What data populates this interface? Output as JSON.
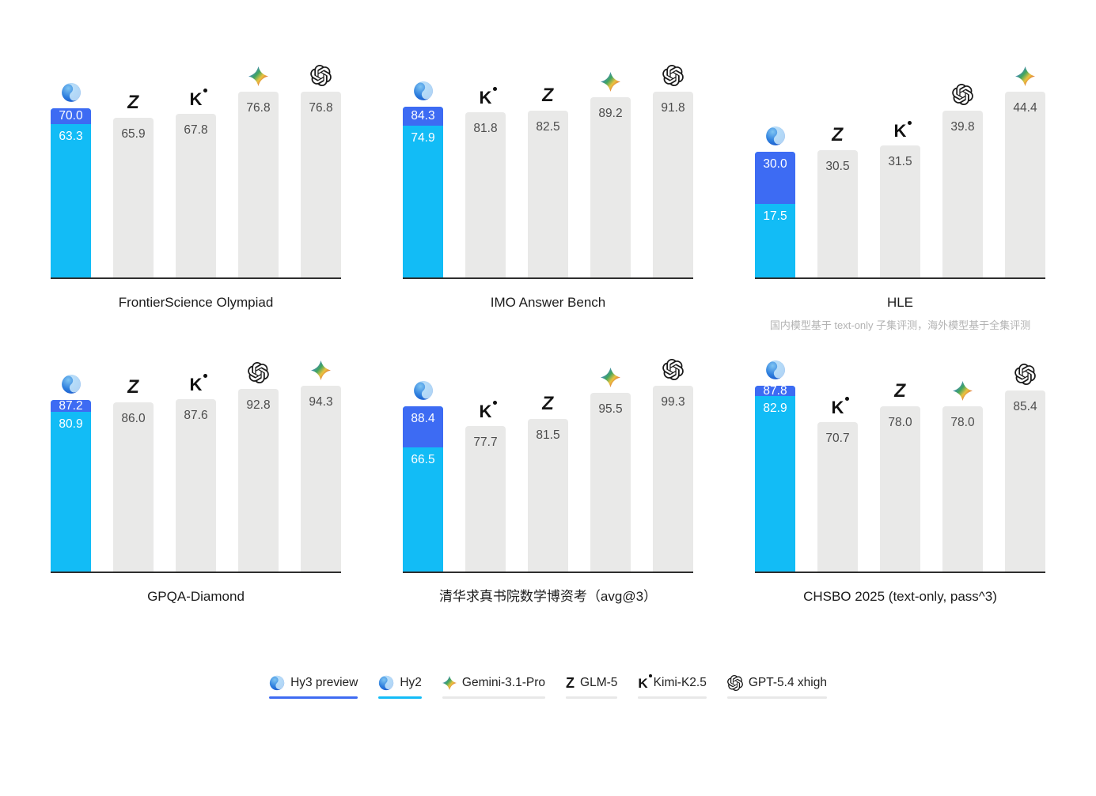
{
  "colors": {
    "hy3_preview_blue": "#3D6BF3",
    "hy2_cyan": "#12BCF6",
    "bar_gray": "#E9E9E8",
    "axis_line": "#2E2E2E",
    "value_text_gray": "#4C4C4C",
    "value_text_on_blue": "#FFFFFF",
    "title_text": "#1C1C1C",
    "footnote_text": "#B3B3B3",
    "legend_underline_hy3": "#3E6BF2",
    "legend_underline_hy2": "#13BCF7",
    "legend_underline_gray": "#E8E8E8"
  },
  "chart_data": [
    {
      "type": "bar",
      "title": "FrontierScience Olympiad",
      "bars": [
        {
          "model": "Hy3 preview + Hy2",
          "icon": "hy",
          "stacked": true,
          "hy3_preview": "70.0",
          "hy2": "63.3"
        },
        {
          "model": "GLM-5",
          "icon": "glm",
          "value": "65.9"
        },
        {
          "model": "Kimi-K2.5",
          "icon": "kimi",
          "value": "67.8"
        },
        {
          "model": "Gemini-3.1-Pro",
          "icon": "gemini",
          "value": "76.8"
        },
        {
          "model": "GPT-5.4 xhigh",
          "icon": "gpt",
          "value": "76.8"
        }
      ]
    },
    {
      "type": "bar",
      "title": "IMO Answer Bench",
      "bars": [
        {
          "model": "Hy3 preview + Hy2",
          "icon": "hy",
          "stacked": true,
          "hy3_preview": "84.3",
          "hy2": "74.9"
        },
        {
          "model": "Kimi-K2.5",
          "icon": "kimi",
          "value": "81.8"
        },
        {
          "model": "GLM-5",
          "icon": "glm",
          "value": "82.5"
        },
        {
          "model": "Gemini-3.1-Pro",
          "icon": "gemini",
          "value": "89.2"
        },
        {
          "model": "GPT-5.4 xhigh",
          "icon": "gpt",
          "value": "91.8"
        }
      ]
    },
    {
      "type": "bar",
      "title": "HLE",
      "footnote": "国内模型基于 text-only 子集评测，海外模型基于全集评测",
      "bars": [
        {
          "model": "Hy3 preview + Hy2",
          "icon": "hy",
          "stacked": true,
          "hy3_preview": "30.0",
          "hy2": "17.5"
        },
        {
          "model": "GLM-5",
          "icon": "glm",
          "value": "30.5"
        },
        {
          "model": "Kimi-K2.5",
          "icon": "kimi",
          "value": "31.5"
        },
        {
          "model": "GPT-5.4 xhigh",
          "icon": "gpt",
          "value": "39.8"
        },
        {
          "model": "Gemini-3.1-Pro",
          "icon": "gemini",
          "value": "44.4"
        }
      ]
    },
    {
      "type": "bar",
      "title": "GPQA-Diamond",
      "bars": [
        {
          "model": "Hy3 preview + Hy2",
          "icon": "hy",
          "stacked": true,
          "hy3_preview": "87.2",
          "hy2": "80.9"
        },
        {
          "model": "GLM-5",
          "icon": "glm",
          "value": "86.0"
        },
        {
          "model": "Kimi-K2.5",
          "icon": "kimi",
          "value": "87.6"
        },
        {
          "model": "GPT-5.4 xhigh",
          "icon": "gpt",
          "value": "92.8"
        },
        {
          "model": "Gemini-3.1-Pro",
          "icon": "gemini",
          "value": "94.3"
        }
      ]
    },
    {
      "type": "bar",
      "title": "清华求真书院数学博资考（avg@3）",
      "bars": [
        {
          "model": "Hy3 preview + Hy2",
          "icon": "hy",
          "stacked": true,
          "hy3_preview": "88.4",
          "hy2": "66.5"
        },
        {
          "model": "Kimi-K2.5",
          "icon": "kimi",
          "value": "77.7"
        },
        {
          "model": "GLM-5",
          "icon": "glm",
          "value": "81.5"
        },
        {
          "model": "Gemini-3.1-Pro",
          "icon": "gemini",
          "value": "95.5"
        },
        {
          "model": "GPT-5.4 xhigh",
          "icon": "gpt",
          "value": "99.3"
        }
      ]
    },
    {
      "type": "bar",
      "title": "CHSBO 2025 (text-only, pass^3)",
      "bars": [
        {
          "model": "Hy3 preview + Hy2",
          "icon": "hy",
          "stacked": true,
          "hy3_preview": "87.8",
          "hy2": "82.9"
        },
        {
          "model": "Kimi-K2.5",
          "icon": "kimi",
          "value": "70.7"
        },
        {
          "model": "GLM-5",
          "icon": "glm",
          "value": "78.0"
        },
        {
          "model": "Gemini-3.1-Pro",
          "icon": "gemini",
          "value": "78.0"
        },
        {
          "model": "GPT-5.4 xhigh",
          "icon": "gpt",
          "value": "85.4"
        }
      ]
    }
  ],
  "legend": [
    {
      "label": "Hy3 preview",
      "icon": "hy",
      "underline": "#3E6BF2"
    },
    {
      "label": "Hy2",
      "icon": "hy",
      "underline": "#13BCF7"
    },
    {
      "label": "Gemini-3.1-Pro",
      "icon": "gemini",
      "underline": "#E8E8E8"
    },
    {
      "label": "GLM-5",
      "icon": "glm",
      "underline": "#E8E8E8"
    },
    {
      "label": "Kimi-K2.5",
      "icon": "kimi",
      "underline": "#E8E8E8"
    },
    {
      "label": "GPT-5.4 xhigh",
      "icon": "gpt",
      "underline": "#E8E8E8"
    }
  ]
}
